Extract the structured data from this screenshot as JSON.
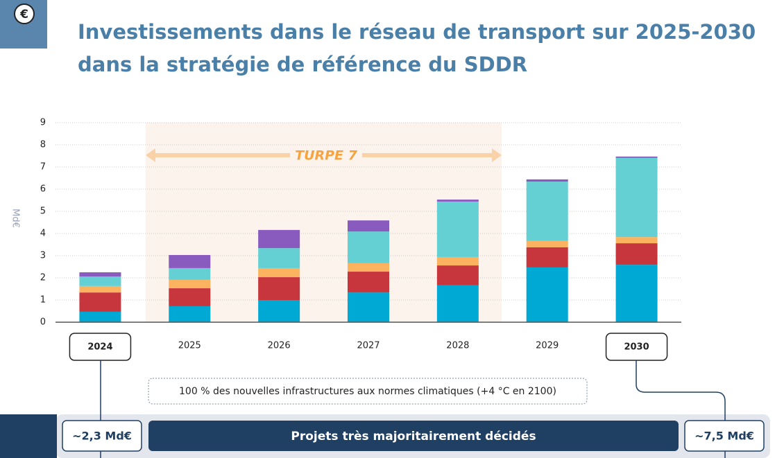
{
  "chart_data": {
    "type": "stacked_bar",
    "title": [
      "Investissements dans le réseau de transport sur 2025-2030",
      "dans la stratégie de référence du SDDR"
    ],
    "y_label": "Md€",
    "period_label": "TURPE 7",
    "note": "100 % des nouvelles infrastructures aux normes climatiques (+4 °C en 2100)",
    "start_total": "~2,3 Md€",
    "end_total": "~7,5 Md€",
    "banner": "Projets très majoritairement décidés",
    "categories": [
      "2024",
      "2025",
      "2026",
      "2027",
      "2028",
      "2029",
      "2030"
    ],
    "series": [
      {
        "color": "#00a8d4",
        "values": [
          0.47,
          0.72,
          1.0,
          1.34,
          1.66,
          2.47,
          2.59
        ]
      },
      {
        "color": "#c8363d",
        "values": [
          0.87,
          0.81,
          1.03,
          0.94,
          0.9,
          0.91,
          0.97
        ]
      },
      {
        "color": "#fbb35f",
        "values": [
          0.29,
          0.38,
          0.41,
          0.38,
          0.38,
          0.28,
          0.28
        ]
      },
      {
        "color": "#64d0d3",
        "values": [
          0.43,
          0.53,
          0.9,
          1.43,
          2.5,
          2.68,
          3.57
        ]
      },
      {
        "color": "#8a5bbf",
        "values": [
          0.19,
          0.59,
          0.82,
          0.5,
          0.09,
          0.1,
          0.06
        ]
      }
    ],
    "ylim": [
      0,
      9
    ],
    "yticks": [
      0,
      1,
      2,
      3,
      4,
      5,
      6,
      7,
      8,
      9
    ],
    "grid": true
  }
}
